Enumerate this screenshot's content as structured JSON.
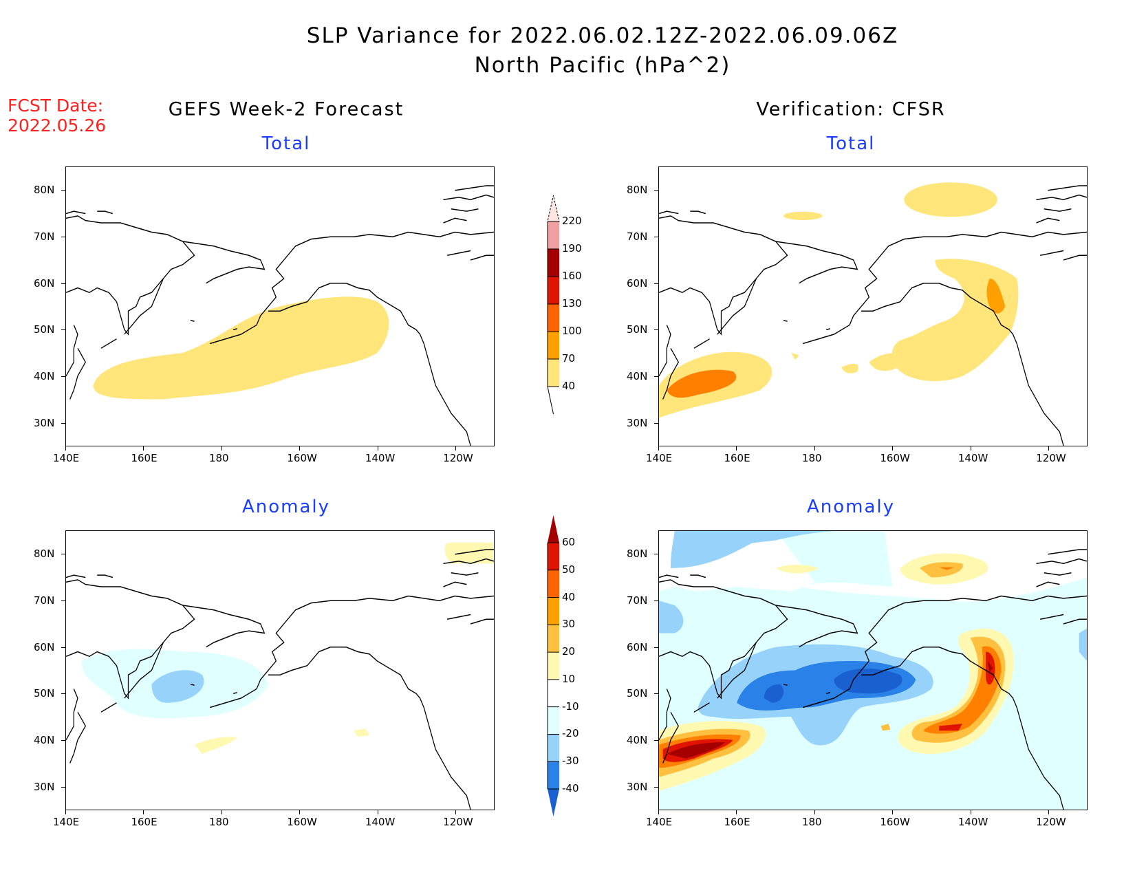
{
  "title": {
    "line1": "SLP Variance for 2022.06.02.12Z-2022.06.09.06Z",
    "line2": "North Pacific (hPa^2)"
  },
  "fcst_date": {
    "label": "FCST Date:",
    "value": "2022.05.26"
  },
  "columns": {
    "left": "GEFS Week-2 Forecast",
    "right": "Verification: CFSR"
  },
  "panels": {
    "total": "Total",
    "anomaly": "Anomaly"
  },
  "axes": {
    "lat_labels": [
      "80N",
      "70N",
      "60N",
      "50N",
      "40N",
      "30N"
    ],
    "lon_labels": [
      "140E",
      "160E",
      "180",
      "160W",
      "140W",
      "120W"
    ]
  },
  "colorbar_total": {
    "levels": [
      "40",
      "70",
      "100",
      "130",
      "160",
      "190",
      "220"
    ],
    "colors": [
      "#ffe57a",
      "#ffa000",
      "#ff6200",
      "#e01400",
      "#a50000",
      "#f0a0a0",
      "#ffe4e4"
    ]
  },
  "colorbar_anomaly": {
    "levels": [
      "-40",
      "-30",
      "-20",
      "-10",
      "10",
      "20",
      "30",
      "40",
      "50",
      "60"
    ],
    "colors": [
      "#1a60d0",
      "#2a82e8",
      "#96d2fa",
      "#e0ffff",
      "#ffffff",
      "#fff8b0",
      "#ffc040",
      "#ffa000",
      "#ff6200",
      "#e01400",
      "#a50000"
    ]
  }
}
